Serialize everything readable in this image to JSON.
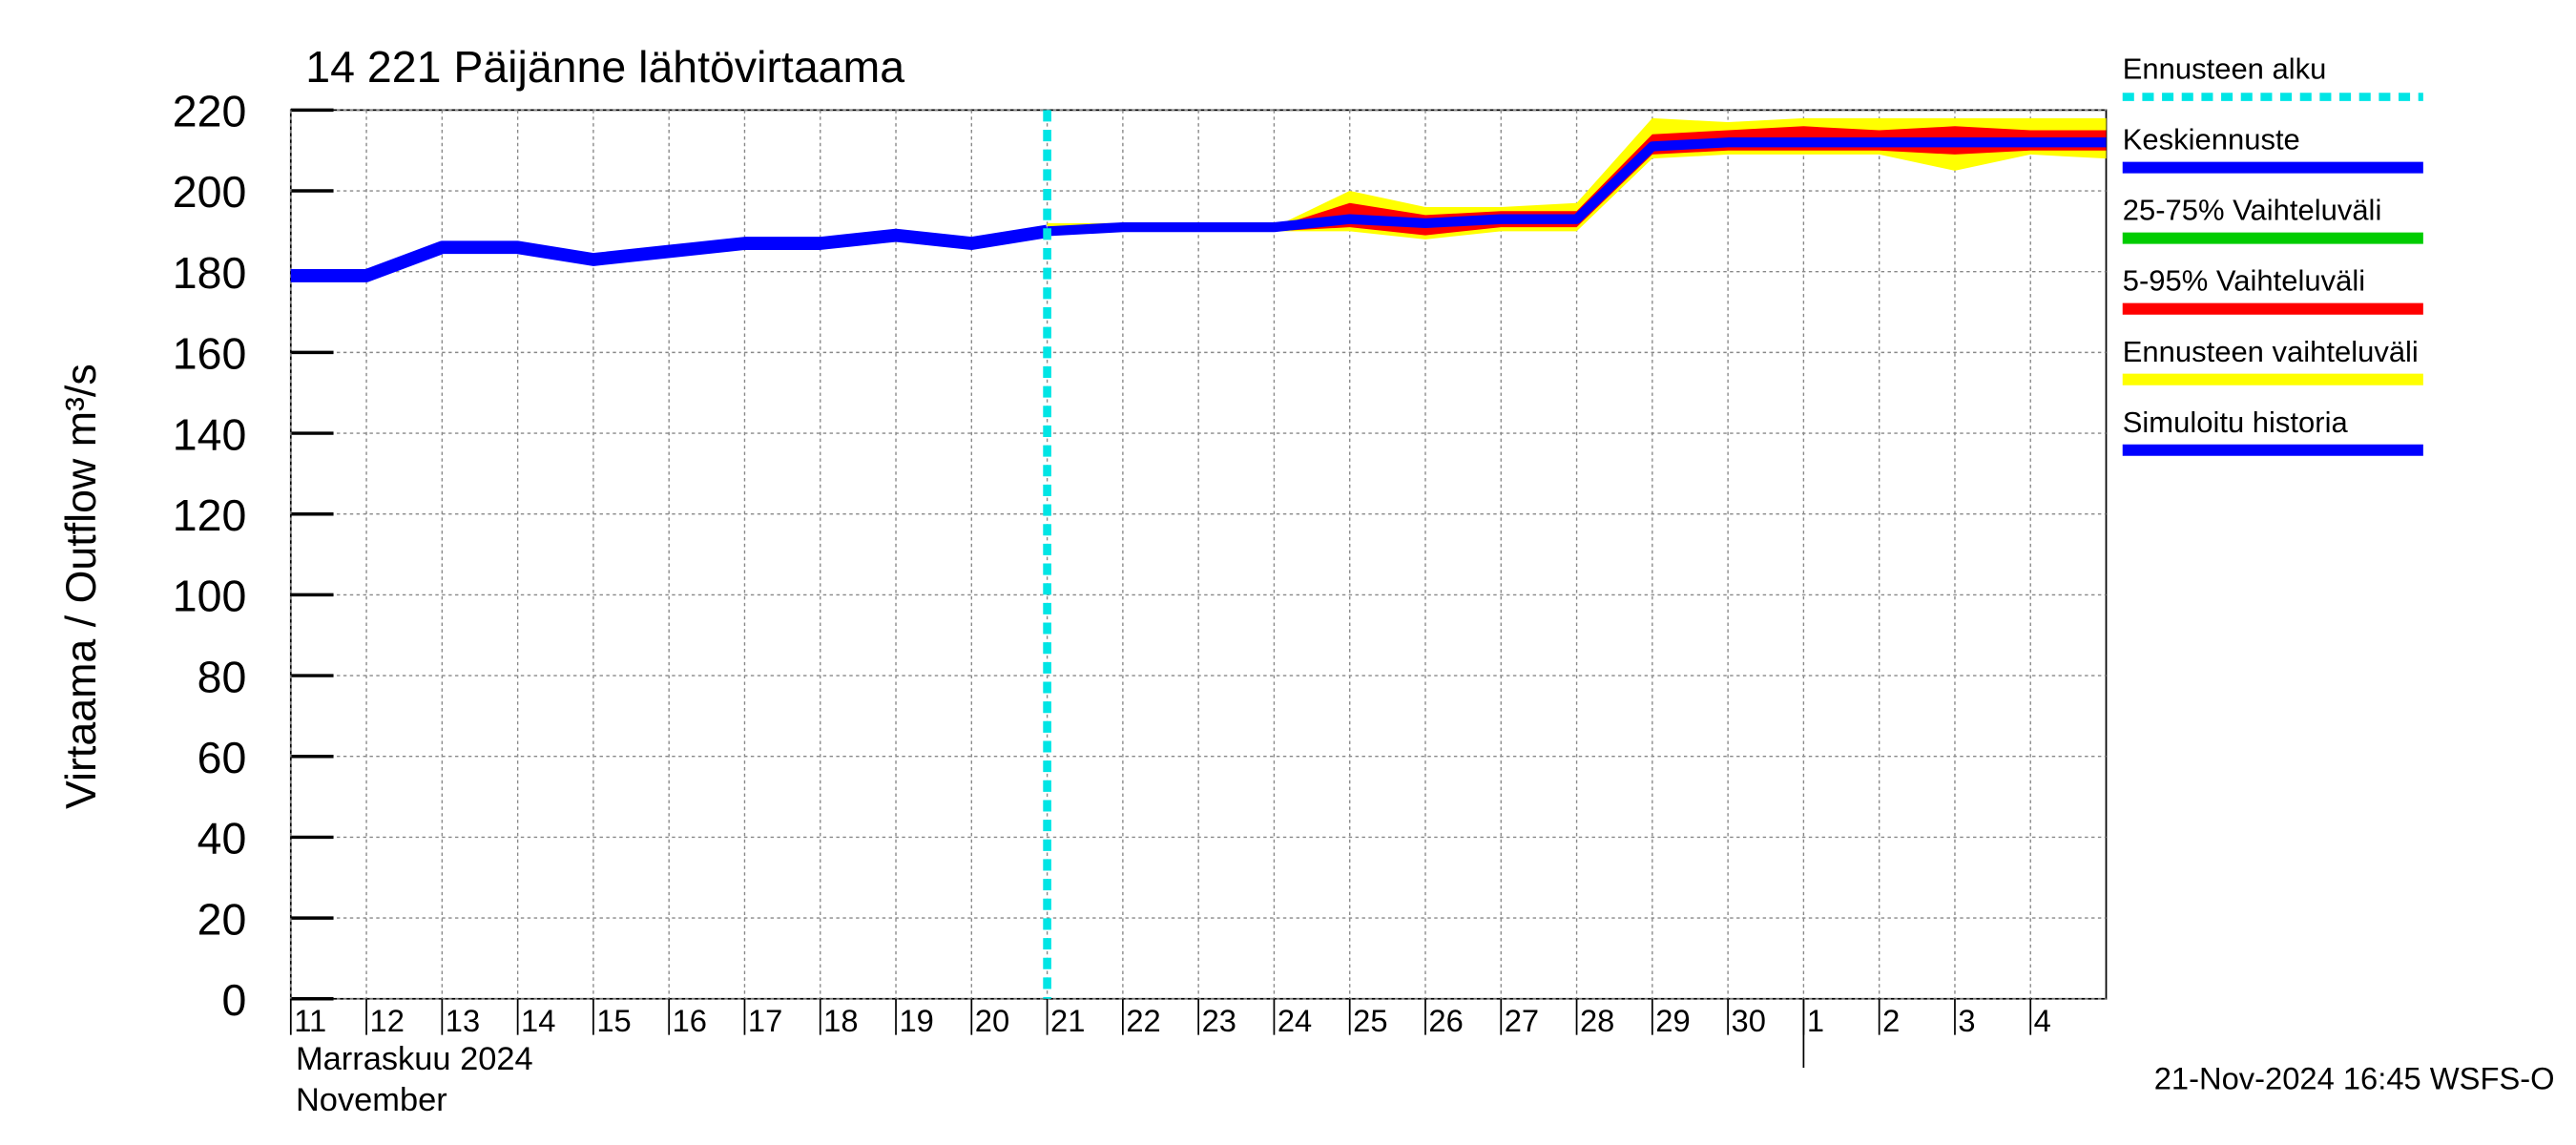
{
  "chart_data": {
    "type": "line",
    "title": "14 221 Päijänne lähtövirtaama",
    "y_label": "Virtaama / Outflow    m³/s",
    "x_label_lines": [
      "Marraskuu 2024",
      "November"
    ],
    "footer": "21-Nov-2024 16:45 WSFS-O",
    "grid": true,
    "legend": "right",
    "xlim": [
      "2024-11-11",
      "2024-12-05"
    ],
    "xticks": [
      {
        "value": "2024-11-11",
        "label": "11"
      },
      {
        "value": "2024-11-12",
        "label": "12"
      },
      {
        "value": "2024-11-13",
        "label": "13"
      },
      {
        "value": "2024-11-14",
        "label": "14"
      },
      {
        "value": "2024-11-15",
        "label": "15"
      },
      {
        "value": "2024-11-16",
        "label": "16"
      },
      {
        "value": "2024-11-17",
        "label": "17"
      },
      {
        "value": "2024-11-18",
        "label": "18"
      },
      {
        "value": "2024-11-19",
        "label": "19"
      },
      {
        "value": "2024-11-20",
        "label": "20"
      },
      {
        "value": "2024-11-21",
        "label": "21"
      },
      {
        "value": "2024-11-22",
        "label": "22"
      },
      {
        "value": "2024-11-23",
        "label": "23"
      },
      {
        "value": "2024-11-24",
        "label": "24"
      },
      {
        "value": "2024-11-25",
        "label": "25"
      },
      {
        "value": "2024-11-26",
        "label": "26"
      },
      {
        "value": "2024-11-27",
        "label": "27"
      },
      {
        "value": "2024-11-28",
        "label": "28"
      },
      {
        "value": "2024-11-29",
        "label": "29"
      },
      {
        "value": "2024-11-30",
        "label": "30"
      },
      {
        "value": "2024-12-01",
        "label": "1"
      },
      {
        "value": "2024-12-02",
        "label": "2"
      },
      {
        "value": "2024-12-03",
        "label": "3"
      },
      {
        "value": "2024-12-04",
        "label": "4"
      }
    ],
    "month_boundary": "2024-12-01",
    "ylim": [
      0,
      220
    ],
    "yticks": [
      0,
      20,
      40,
      60,
      80,
      100,
      120,
      140,
      160,
      180,
      200,
      220
    ],
    "forecast_start": {
      "name": "Ennusteen alku",
      "x": "2024-11-21",
      "color": "#00e5e5"
    },
    "series": [
      {
        "name": "Keskiennuste",
        "color": "#0000ff",
        "x": [
          "2024-11-21",
          "2024-11-22",
          "2024-11-23",
          "2024-11-24",
          "2024-11-25",
          "2024-11-26",
          "2024-11-27",
          "2024-11-28",
          "2024-11-29",
          "2024-11-30",
          "2024-12-01",
          "2024-12-02",
          "2024-12-03",
          "2024-12-04",
          "2024-12-05"
        ],
        "values": [
          190,
          191,
          191,
          191,
          193,
          192,
          193,
          193,
          211,
          212,
          212,
          212,
          212,
          212,
          212
        ]
      },
      {
        "name": "25-75% Vaihteluväli",
        "color": "#00cc00",
        "x": [
          "2024-11-21",
          "2024-11-22",
          "2024-11-23",
          "2024-11-24",
          "2024-11-25",
          "2024-11-26",
          "2024-11-27",
          "2024-11-28",
          "2024-11-29",
          "2024-11-30",
          "2024-12-01",
          "2024-12-02",
          "2024-12-03",
          "2024-12-04",
          "2024-12-05"
        ],
        "high": [
          191,
          191,
          191,
          191,
          194,
          193,
          194,
          194,
          212,
          213,
          213,
          213,
          213,
          213,
          213
        ],
        "low": [
          190,
          190,
          190,
          190,
          192,
          191,
          192,
          192,
          210,
          211,
          211,
          211,
          211,
          211,
          211
        ]
      },
      {
        "name": "5-95% Vaihteluväli",
        "color": "#ff0000",
        "x": [
          "2024-11-21",
          "2024-11-22",
          "2024-11-23",
          "2024-11-24",
          "2024-11-25",
          "2024-11-26",
          "2024-11-27",
          "2024-11-28",
          "2024-11-29",
          "2024-11-30",
          "2024-12-01",
          "2024-12-02",
          "2024-12-03",
          "2024-12-04",
          "2024-12-05"
        ],
        "high": [
          191,
          191,
          191,
          191,
          197,
          194,
          195,
          195,
          214,
          215,
          216,
          215,
          216,
          215,
          215
        ],
        "low": [
          190,
          190,
          190,
          190,
          191,
          189,
          191,
          191,
          209,
          210,
          210,
          210,
          209,
          210,
          210
        ]
      },
      {
        "name": "Ennusteen vaihteluväli",
        "color": "#ffff00",
        "x": [
          "2024-11-21",
          "2024-11-22",
          "2024-11-23",
          "2024-11-24",
          "2024-11-25",
          "2024-11-26",
          "2024-11-27",
          "2024-11-28",
          "2024-11-29",
          "2024-11-30",
          "2024-12-01",
          "2024-12-02",
          "2024-12-03",
          "2024-12-04",
          "2024-12-05"
        ],
        "high": [
          192,
          192,
          191,
          191,
          200,
          196,
          196,
          197,
          218,
          217,
          218,
          218,
          218,
          218,
          218
        ],
        "low": [
          190,
          190,
          190,
          190,
          190,
          188,
          190,
          190,
          208,
          209,
          209,
          209,
          205,
          209,
          208
        ]
      },
      {
        "name": "Simuloitu historia",
        "color": "#0000ff",
        "x": [
          "2024-11-11",
          "2024-11-12",
          "2024-11-13",
          "2024-11-14",
          "2024-11-15",
          "2024-11-16",
          "2024-11-17",
          "2024-11-18",
          "2024-11-19",
          "2024-11-20",
          "2024-11-21"
        ],
        "values": [
          179,
          179,
          186,
          186,
          183,
          185,
          187,
          187,
          189,
          187,
          190
        ]
      }
    ]
  }
}
